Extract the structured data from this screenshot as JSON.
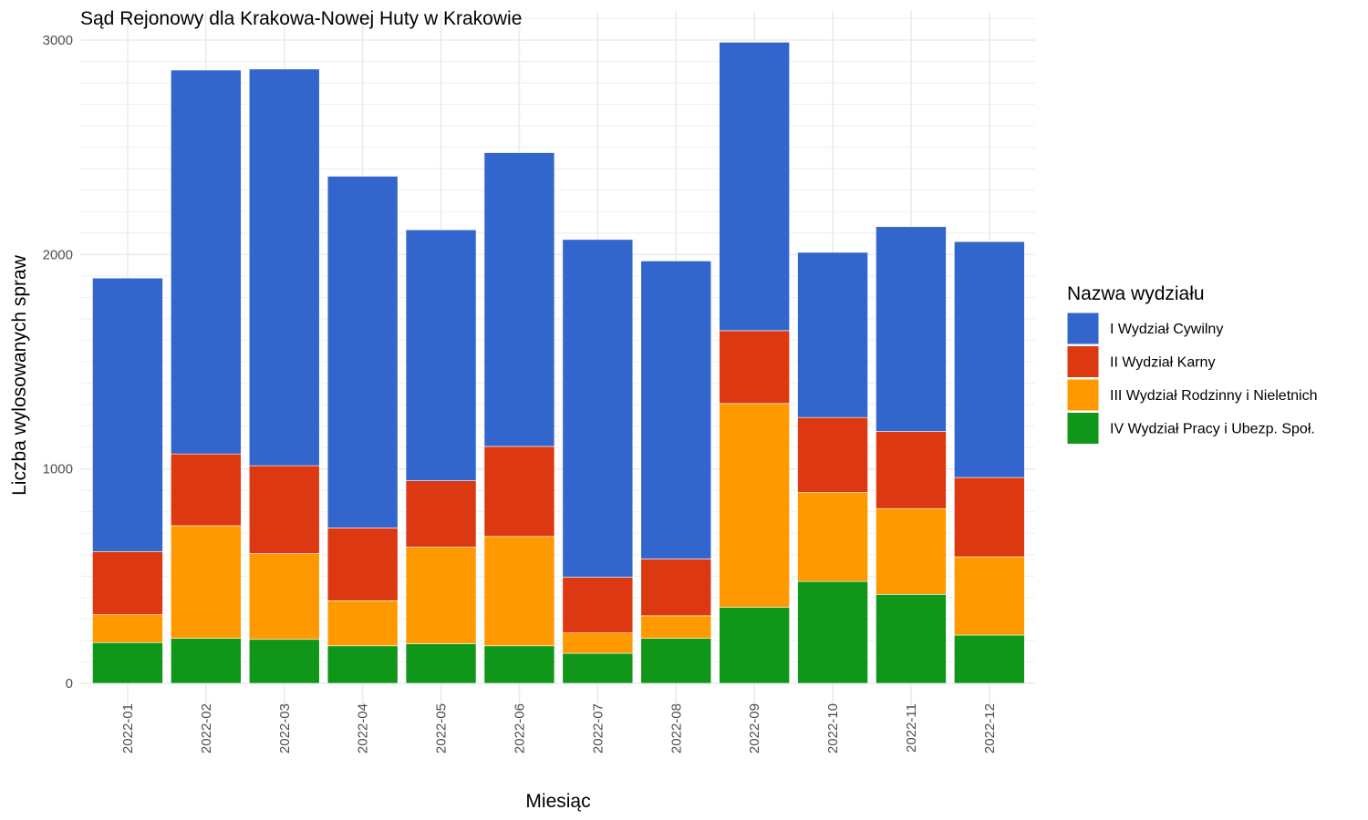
{
  "chart_data": {
    "type": "bar",
    "stacked": true,
    "title": "Sąd Rejonowy dla Krakowa-Nowej Huty w Krakowie",
    "xlabel": "Miesiąc",
    "ylabel": "Liczba wylosowanych spraw",
    "ylim": [
      0,
      3000
    ],
    "yticks": [
      0,
      1000,
      2000,
      3000
    ],
    "grid": true,
    "legend": {
      "title": "Nazwa wydziału",
      "position": "right"
    },
    "categories": [
      "2022-01",
      "2022-02",
      "2022-03",
      "2022-04",
      "2022-05",
      "2022-06",
      "2022-07",
      "2022-08",
      "2022-09",
      "2022-10",
      "2022-11",
      "2022-12"
    ],
    "series": [
      {
        "name": "IV Wydział Pracy i Ubezp. Społ.",
        "color": "#109618",
        "values": [
          190,
          210,
          205,
          175,
          185,
          175,
          140,
          210,
          355,
          475,
          415,
          225
        ]
      },
      {
        "name": "III Wydział Rodzinny i Nieletnich",
        "color": "#ff9900",
        "values": [
          130,
          525,
          400,
          210,
          450,
          510,
          95,
          105,
          950,
          415,
          400,
          365
        ]
      },
      {
        "name": "II Wydział Karny",
        "color": "#dc3912",
        "values": [
          295,
          335,
          410,
          340,
          310,
          420,
          260,
          265,
          340,
          350,
          360,
          370
        ]
      },
      {
        "name": "I Wydział Cywilny",
        "color": "#3366cc",
        "values": [
          1275,
          1790,
          1850,
          1640,
          1170,
          1370,
          1575,
          1390,
          1345,
          770,
          955,
          1100
        ]
      }
    ],
    "legend_order": [
      "I Wydział Cywilny",
      "II Wydział Karny",
      "III Wydział Rodzinny i Nieletnich",
      "IV Wydział Pracy i Ubezp. Społ."
    ]
  }
}
